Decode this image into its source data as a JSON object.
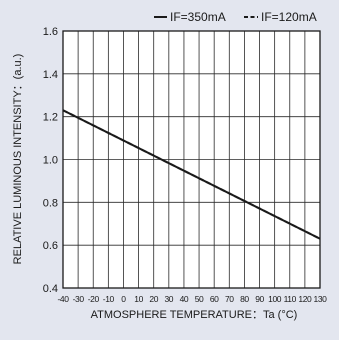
{
  "chart_data": {
    "type": "line",
    "xlabel": "ATMOSPHERE TEMPERATURE：Ta (°C)",
    "ylabel": "RELATIVE LUMINOUS INTENSITY：(a.u.)",
    "xlim": [
      -40,
      130
    ],
    "ylim": [
      0.4,
      1.6
    ],
    "x_ticks": [
      "-40",
      "-30",
      "-20",
      "-10",
      "0",
      "10",
      "20",
      "30",
      "40",
      "50",
      "60",
      "70",
      "80",
      "90",
      "100",
      "110",
      "120",
      "130"
    ],
    "y_ticks": [
      "0.4",
      "0.6",
      "0.8",
      "1.0",
      "1.2",
      "1.4",
      "1.6"
    ],
    "grid": true,
    "legend_position": "top-right",
    "series": [
      {
        "name": "IF=350mA",
        "line_style": "solid",
        "color": "#1a1a1a",
        "x": [
          -40,
          130
        ],
        "y": [
          1.23,
          0.63
        ]
      },
      {
        "name": "IF=120mA",
        "line_style": "dashed",
        "color": "#1a1a1a",
        "x": [
          -40,
          130
        ],
        "y": [
          1.23,
          0.63
        ]
      }
    ]
  }
}
